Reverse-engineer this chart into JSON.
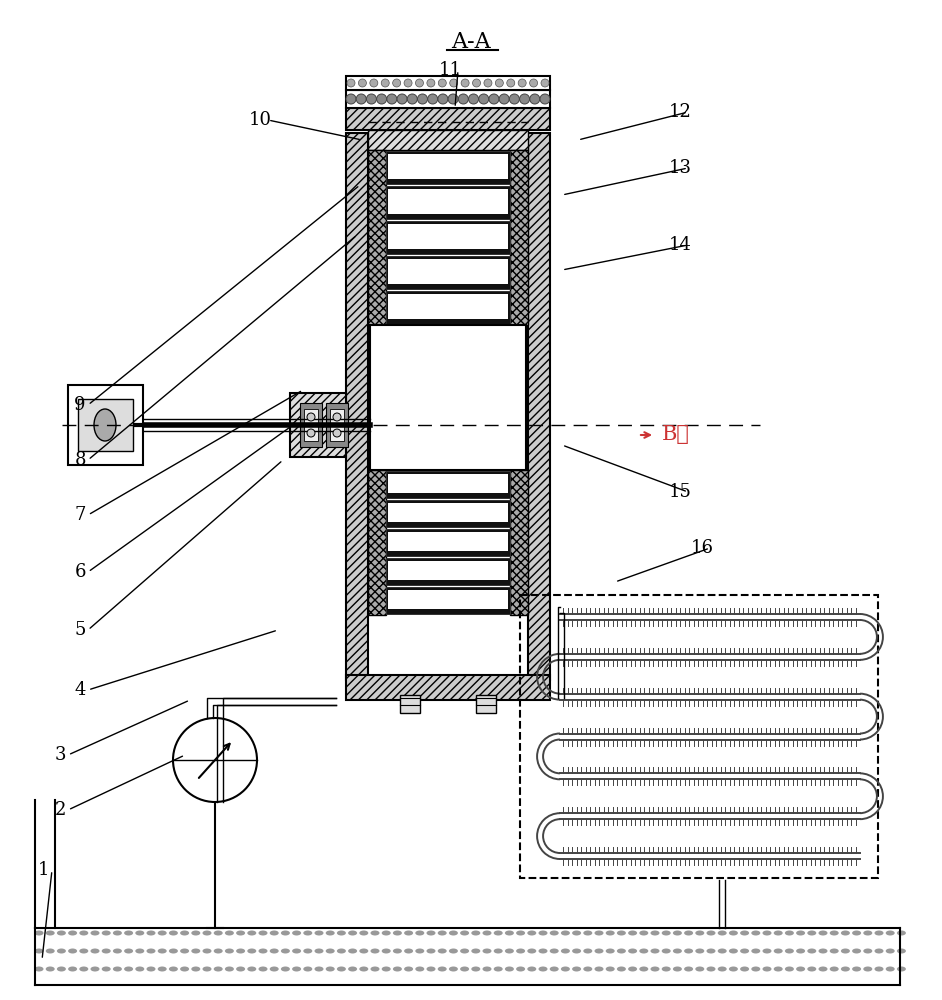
{
  "title": "A-A",
  "label_B": "B向",
  "bg_color": "#ffffff",
  "line_color": "#000000",
  "font_size_title": 16,
  "font_size_label": 13,
  "labels_data": [
    [
      "1",
      52,
      870,
      42,
      960
    ],
    [
      "2",
      68,
      810,
      185,
      755
    ],
    [
      "3",
      68,
      755,
      190,
      700
    ],
    [
      "4",
      88,
      690,
      278,
      630
    ],
    [
      "5",
      88,
      630,
      283,
      460
    ],
    [
      "6",
      88,
      572,
      293,
      425
    ],
    [
      "7",
      88,
      515,
      303,
      390
    ],
    [
      "8",
      88,
      460,
      357,
      235
    ],
    [
      "9",
      88,
      405,
      360,
      185
    ],
    [
      "10",
      268,
      120,
      362,
      140
    ],
    [
      "11",
      458,
      70,
      455,
      108
    ],
    [
      "12",
      688,
      112,
      578,
      140
    ],
    [
      "13",
      688,
      168,
      562,
      195
    ],
    [
      "14",
      688,
      245,
      562,
      270
    ],
    [
      "15",
      688,
      492,
      562,
      445
    ],
    [
      "16",
      710,
      548,
      615,
      582
    ]
  ]
}
